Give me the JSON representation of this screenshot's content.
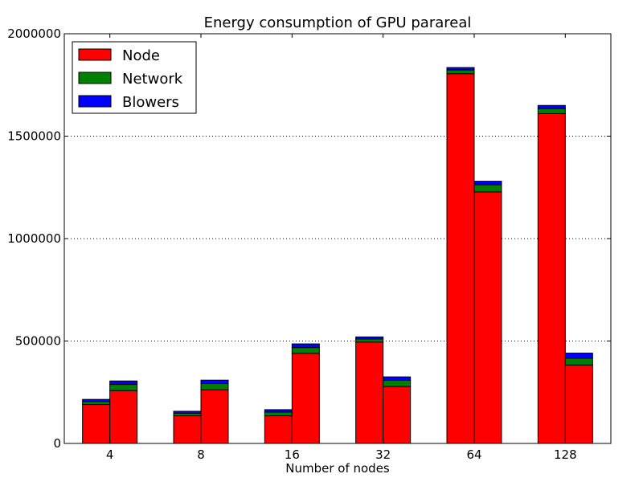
{
  "chart_data": {
    "type": "bar",
    "stacked": true,
    "grouped": true,
    "title": "Energy consumption of GPU parareal",
    "xlabel": "Number of nodes",
    "ylabel": "",
    "categories": [
      "4",
      "8",
      "16",
      "32",
      "64",
      "128"
    ],
    "ylim": [
      0,
      2000000
    ],
    "yticks": [
      0,
      500000,
      1000000,
      1500000,
      2000000
    ],
    "ytick_labels": [
      "0",
      "500000",
      "1000000",
      "1500000",
      "2000000"
    ],
    "grid": "horizontal dotted",
    "legend_position": "top-left",
    "series": [
      {
        "name": "Node",
        "color": "#ff0000"
      },
      {
        "name": "Network",
        "color": "#008000"
      },
      {
        "name": "Blowers",
        "color": "#0000ff"
      }
    ],
    "groups": [
      {
        "bar": "left",
        "Node": [
          190000,
          135000,
          135000,
          495000,
          1805000,
          1610000
        ],
        "Network": [
          15000,
          12000,
          18000,
          15000,
          18000,
          25000
        ],
        "Blowers": [
          10000,
          10000,
          12000,
          10000,
          12000,
          15000
        ]
      },
      {
        "bar": "right",
        "Node": [
          258000,
          262000,
          440000,
          278000,
          1228000,
          383000
        ],
        "Network": [
          30000,
          30000,
          28000,
          30000,
          35000,
          33000
        ],
        "Blowers": [
          17000,
          17000,
          18000,
          17000,
          17000,
          25000
        ]
      }
    ]
  }
}
